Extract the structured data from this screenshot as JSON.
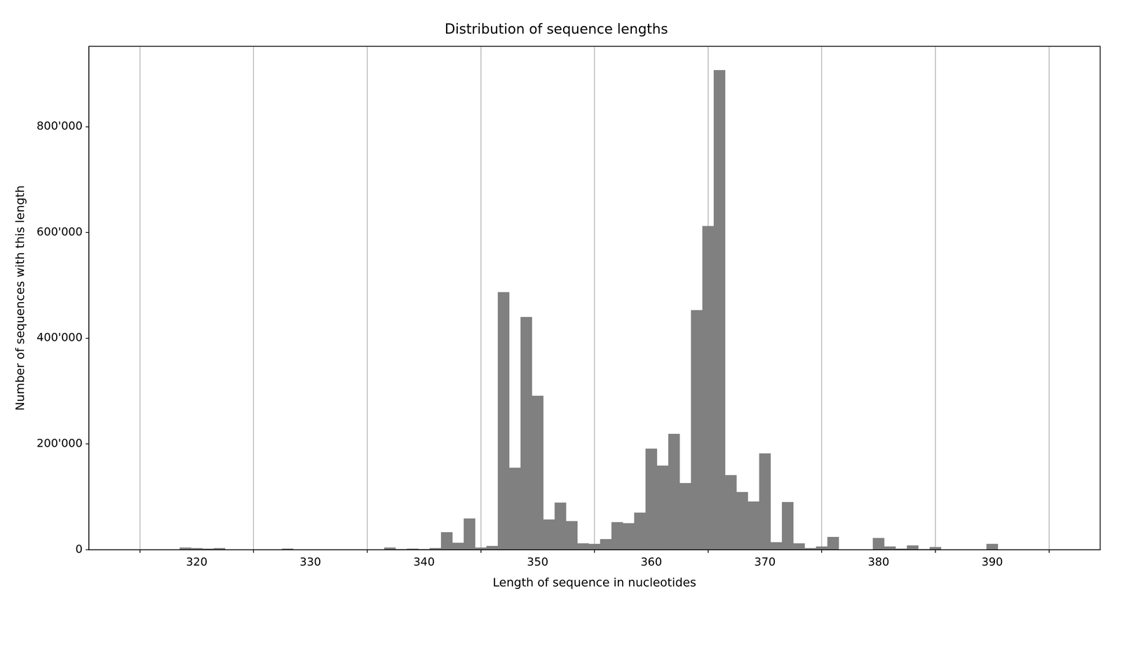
{
  "chart_data": {
    "type": "histogram",
    "title": "Distribution of sequence lengths",
    "x_label": "Length of sequence in nucleotides",
    "y_label": "Number of sequences with this length",
    "bins": [
      318.5,
      319.5,
      320.5,
      321.5,
      322.5,
      323.5,
      324.5,
      325.5,
      326.5,
      327.5,
      328.5,
      329.5,
      330.5,
      331.5,
      332.5,
      333.5,
      334.5,
      335.5,
      336.5,
      337.5,
      338.5,
      339.5,
      340.5,
      341.5,
      342.5,
      343.5,
      344.5,
      345.5,
      346.5,
      347.5,
      348.5,
      349.5,
      350.5,
      351.5,
      352.5,
      353.5,
      354.5,
      355.5,
      356.5,
      357.5,
      358.5,
      359.5,
      360.5,
      361.5,
      362.5,
      363.5,
      364.5,
      365.5,
      366.5,
      367.5,
      368.5,
      369.5,
      370.5,
      371.5,
      372.5,
      373.5,
      374.5,
      375.5,
      376.5,
      377.5,
      378.5,
      379.5,
      380.5,
      381.5,
      382.5,
      383.5,
      384.5,
      385.5,
      386.5,
      387.5,
      388.5,
      389.5,
      390.5
    ],
    "values": [
      4000,
      3000,
      2000,
      3000,
      0,
      0,
      0,
      0,
      0,
      2000,
      0,
      0,
      0,
      0,
      0,
      0,
      0,
      0,
      4000,
      1000,
      2000,
      1000,
      3000,
      33000,
      13000,
      59000,
      4000,
      7000,
      487000,
      155000,
      440000,
      291000,
      57000,
      89000,
      54000,
      12000,
      11000,
      20000,
      52000,
      50000,
      70000,
      191000,
      159000,
      219000,
      126000,
      453000,
      612000,
      907000,
      141000,
      109000,
      91000,
      182000,
      14000,
      90000,
      12000,
      3000,
      6000,
      24000,
      0,
      0,
      0,
      22000,
      6000,
      2000,
      8000,
      1000,
      5000,
      0,
      0,
      0,
      0,
      11000
    ],
    "color": "#808080",
    "xlim": [
      310.5,
      399.5
    ],
    "xticks": [
      320,
      330,
      340,
      350,
      360,
      370,
      380,
      390
    ],
    "ylim": [
      0,
      952000
    ],
    "yticks": [
      0,
      {
        "value": 200000,
        "label": "200'000"
      },
      {
        "value": 400000,
        "label": "400'000"
      },
      {
        "value": 600000,
        "label": "600'000"
      },
      {
        "value": 800000,
        "label": "800'000"
      }
    ],
    "grid": "x"
  }
}
